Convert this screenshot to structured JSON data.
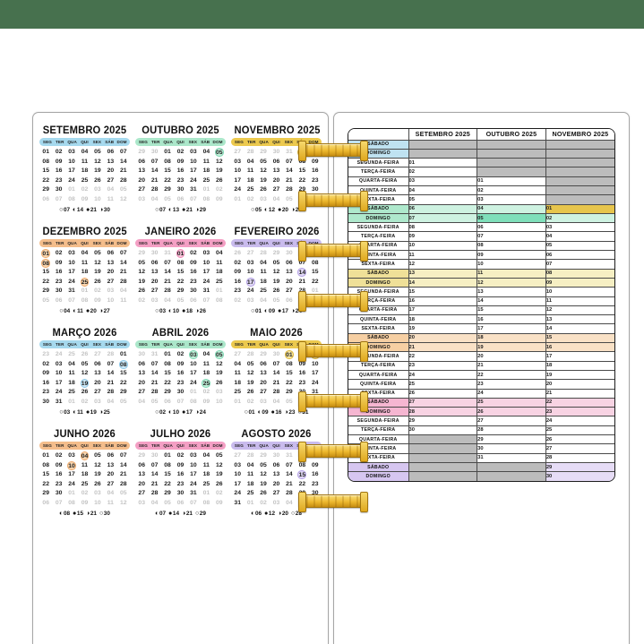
{
  "top_bar": {
    "color": "#47714e"
  },
  "weekday_header": [
    "SEG",
    "TER",
    "QUA",
    "QUI",
    "SEX",
    "SÁB",
    "DOM"
  ],
  "moon_legend": {
    "full": "○",
    "waning": "◐",
    "new": "●",
    "waxing": "◑"
  },
  "colors": {
    "spiral_gold": "#edb92f",
    "page_border": "#a6a6a6",
    "adjacent_day": "#c4c4c4"
  },
  "calendars": [
    {
      "title": "SETEMBRO 2025",
      "pill": "#a6d9ee",
      "circle": "#cfeaf8",
      "ring": "#8ec8e8",
      "weeks": [
        "01 02 03 04 05 06 07",
        "08 09 10 11 12 13 14",
        "15 16 17 18 19 20 21",
        "22 23 24 25 26 27 28",
        "29 30 g01 g02 g03 g04 g05",
        "g06 g07 g08 g09 g10 g11 g12"
      ],
      "moons": [
        [
          "○",
          "07"
        ],
        [
          "◐",
          "14"
        ],
        [
          "●",
          "21"
        ],
        [
          "◑",
          "30"
        ]
      ]
    },
    {
      "title": "OUTUBRO 2025",
      "pill": "#abe7ca",
      "circle": "#c2efd9",
      "ring": "#7fd8b4",
      "weeks": [
        "g29 g30 01 02 03 04 c05",
        "06 07 08 09 10 11 12",
        "13 14 15 16 17 18 19",
        "20 21 22 23 24 25 26",
        "27 28 29 30 31 g01 g02",
        "g03 g04 g05 g06 g07 g08 g09"
      ],
      "moons": [
        [
          "○",
          "07"
        ],
        [
          "◐",
          "13"
        ],
        [
          "●",
          "21"
        ],
        [
          "◑",
          "29"
        ]
      ]
    },
    {
      "title": "NOVEMBRO 2025",
      "pill": "#ecc94e",
      "circle": "#f6e6a6",
      "ring": "#dfb83a",
      "weeks": [
        "g27 g28 g29 g30 g31 c01 02",
        "03 04 05 06 07 08 09",
        "10 11 12 13 14 15 16",
        "17 18 19 20 21 22 23",
        "24 25 26 27 28 29 30",
        "g01 g02 g03 g04 g05 g06 g07"
      ],
      "moons": [
        [
          "○",
          "05"
        ],
        [
          "◐",
          "12"
        ],
        [
          "●",
          "20"
        ],
        [
          "◑",
          "28"
        ]
      ]
    },
    {
      "title": "DEZEMBRO 2025",
      "pill": "#f4bd8b",
      "circle": "#f8d7b2",
      "ring": "#eda86a",
      "weeks": [
        "c01 02 03 04 05 06 07",
        "c08 09 10 11 12 13 14",
        "15 16 17 18 19 20 21",
        "22 23 24 c25 26 27 28",
        "29 30 31 g01 g02 g03 g04",
        "g05 g06 g07 g08 g09 g10 g11"
      ],
      "moons": [
        [
          "○",
          "04"
        ],
        [
          "◐",
          "11"
        ],
        [
          "●",
          "20"
        ],
        [
          "◑",
          "27"
        ]
      ]
    },
    {
      "title": "JANEIRO 2026",
      "pill": "#f49fc4",
      "circle": "#f8c5da",
      "ring": "#ef87b4",
      "weeks": [
        "g29 g30 g31 c01 02 03 04",
        "05 06 07 08 09 10 11",
        "12 13 14 15 16 17 18",
        "19 20 21 22 23 24 25",
        "26 27 28 29 30 31 g01",
        "g02 g03 g04 g05 g06 g07 g08"
      ],
      "moons": [
        [
          "○",
          "03"
        ],
        [
          "◐",
          "10"
        ],
        [
          "●",
          "18"
        ],
        [
          "◑",
          "26"
        ]
      ]
    },
    {
      "title": "FEVEREIRO 2026",
      "pill": "#c9bbed",
      "circle": "#e2daf6",
      "ring": "#b3a0e4",
      "weeks": [
        "g26 g27 g28 g29 g30 g31 01",
        "02 03 04 05 06 07 08",
        "09 10 11 12 13 c14 15",
        "16 c17 18 19 20 21 22",
        "23 24 25 26 27 28 g01",
        "g02 g03 g04 g05 g06 g07 g08"
      ],
      "moons": [
        [
          "○",
          "01"
        ],
        [
          "◐",
          "09"
        ],
        [
          "●",
          "17"
        ],
        [
          "◑",
          "24"
        ]
      ]
    },
    {
      "title": "MARÇO 2026",
      "pill": "#a6d9ee",
      "circle": "#cfeaf8",
      "ring": "#8ec8e8",
      "weeks": [
        "g23 g24 g25 g26 g27 g28 01",
        "02 03 04 05 06 07 c08",
        "09 10 11 12 13 14 15",
        "16 17 18 c19 20 21 22",
        "23 24 25 26 27 28 29",
        "30 31 g01 g02 g03 g04 g05"
      ],
      "moons": [
        [
          "○",
          "03"
        ],
        [
          "◐",
          "11"
        ],
        [
          "●",
          "19"
        ],
        [
          "◑",
          "25"
        ]
      ]
    },
    {
      "title": "ABRIL 2026",
      "pill": "#abe7ca",
      "circle": "#c2efd9",
      "ring": "#7fd8b4",
      "weeks": [
        "g30 g31 01 02 c03 04 c05",
        "06 07 08 09 10 11 12",
        "13 14 15 16 17 18 19",
        "20 21 22 23 24 c25 26",
        "27 28 29 30 g01 g02 g03",
        "g04 g05 g06 g07 g08 g09 g10"
      ],
      "moons": [
        [
          "○",
          "02"
        ],
        [
          "◐",
          "10"
        ],
        [
          "●",
          "17"
        ],
        [
          "◑",
          "24"
        ]
      ]
    },
    {
      "title": "MAIO 2026",
      "pill": "#ecc94e",
      "circle": "#f6e6a6",
      "ring": "#dfb83a",
      "weeks": [
        "g27 g28 g29 g30 c01 02 c03",
        "04 05 06 07 08 09 10",
        "11 12 13 14 15 16 17",
        "18 19 20 21 22 23 24",
        "25 26 27 28 29 30 31",
        "g01 g02 g03 g04 g05 g06 g07"
      ],
      "moons": [
        [
          "○",
          "01"
        ],
        [
          "◐",
          "09"
        ],
        [
          "●",
          "16"
        ],
        [
          "◑",
          "23"
        ],
        [
          "○",
          "31"
        ]
      ]
    },
    {
      "title": "JUNHO 2026",
      "pill": "#f4bd8b",
      "circle": "#f8d7b2",
      "ring": "#eda86a",
      "weeks": [
        "01 02 03 c04 05 06 07",
        "08 09 c10 11 12 13 14",
        "15 16 17 18 19 20 21",
        "22 23 24 25 26 27 28",
        "29 30 g01 g02 g03 g04 g05",
        "g06 g07 g08 g09 g10 g11 g12"
      ],
      "moons": [
        [
          "◐",
          "08"
        ],
        [
          "●",
          "15"
        ],
        [
          "◑",
          "21"
        ],
        [
          "○",
          "30"
        ]
      ]
    },
    {
      "title": "JULHO 2026",
      "pill": "#f49fc4",
      "circle": "#f8c5da",
      "ring": "#ef87b4",
      "weeks": [
        "g29 g30 01 02 03 04 05",
        "06 07 08 09 10 11 12",
        "13 14 15 16 17 18 19",
        "20 21 22 23 24 25 26",
        "27 28 29 30 31 g01 g02",
        "g03 g04 g05 g06 g07 g08 g09"
      ],
      "moons": [
        [
          "◐",
          "07"
        ],
        [
          "●",
          "14"
        ],
        [
          "◑",
          "21"
        ],
        [
          "○",
          "29"
        ]
      ]
    },
    {
      "title": "AGOSTO 2026",
      "pill": "#c9bbed",
      "circle": "#e2daf6",
      "ring": "#b3a0e4",
      "weeks": [
        "g27 g28 g29 g30 g31 01 02",
        "03 04 05 06 07 08 09",
        "10 11 12 13 14 c15 16",
        "17 18 19 20 21 22 23",
        "24 25 26 27 28 29 30",
        "31 g01 g02 g03 g04 g05 g06"
      ],
      "moons": [
        [
          "◐",
          "06"
        ],
        [
          "●",
          "12"
        ],
        [
          "◑",
          "20"
        ],
        [
          "○",
          "28"
        ]
      ]
    }
  ],
  "table": {
    "corner_label": "",
    "headers": [
      "SETEMBRO 2025",
      "OUTUBRO 2025",
      "NOVEMBRO 2025"
    ],
    "palette": {
      "blue": {
        "label": "#bfe2f1",
        "tint": "#d9eef8"
      },
      "green": {
        "label": "#aee8cc",
        "tint": "#cef2e1"
      },
      "yellow": {
        "label": "#efe098",
        "tint": "#f6efc3"
      },
      "orange": {
        "label": "#f6cfa3",
        "tint": "#f9e1c6"
      },
      "pink": {
        "label": "#f5b6d1",
        "tint": "#f8d3e3"
      },
      "purple": {
        "label": "#d6c6f0",
        "tint": "#e6dcf6"
      },
      "empty": "#bcbcbc",
      "gold": "#e7c54c",
      "dkgreen": "#7fdfba"
    },
    "rows": [
      {
        "label": "SÁBADO",
        "band": "blue",
        "cells": [
          "",
          "",
          ""
        ]
      },
      {
        "label": "DOMINGO",
        "band": "blue",
        "cells": [
          "",
          "",
          ""
        ]
      },
      {
        "label": "SEGUNDA-FEIRA",
        "band": null,
        "cells": [
          "01",
          "",
          ""
        ]
      },
      {
        "label": "TERÇA-FEIRA",
        "band": null,
        "cells": [
          "02",
          "",
          ""
        ]
      },
      {
        "label": "QUARTA-FEIRA",
        "band": null,
        "cells": [
          "03",
          "01",
          ""
        ]
      },
      {
        "label": "QUINTA-FEIRA",
        "band": null,
        "cells": [
          "04",
          "02",
          ""
        ]
      },
      {
        "label": "SEXTA-FEIRA",
        "band": null,
        "cells": [
          "05",
          "03",
          ""
        ]
      },
      {
        "label": "SÁBADO",
        "band": "green",
        "cells": [
          "06",
          "04",
          "01"
        ],
        "ov": {
          "2": "gold"
        }
      },
      {
        "label": "DOMINGO",
        "band": "green",
        "cells": [
          "07",
          "05",
          "02"
        ],
        "ov": {
          "1": "dkgreen"
        }
      },
      {
        "label": "SEGUNDA-FEIRA",
        "band": null,
        "cells": [
          "08",
          "06",
          "03"
        ]
      },
      {
        "label": "TERÇA-FEIRA",
        "band": null,
        "cells": [
          "09",
          "07",
          "04"
        ]
      },
      {
        "label": "QUARTA-FEIRA",
        "band": null,
        "cells": [
          "10",
          "08",
          "05"
        ]
      },
      {
        "label": "QUINTA-FEIRA",
        "band": null,
        "cells": [
          "11",
          "09",
          "06"
        ]
      },
      {
        "label": "SEXTA-FEIRA",
        "band": null,
        "cells": [
          "12",
          "10",
          "07"
        ]
      },
      {
        "label": "SÁBADO",
        "band": "yellow",
        "cells": [
          "13",
          "11",
          "08"
        ]
      },
      {
        "label": "DOMINGO",
        "band": "yellow",
        "cells": [
          "14",
          "12",
          "09"
        ]
      },
      {
        "label": "SEGUNDA-FEIRA",
        "band": null,
        "cells": [
          "15",
          "13",
          "10"
        ]
      },
      {
        "label": "TERÇA-FEIRA",
        "band": null,
        "cells": [
          "16",
          "14",
          "11"
        ]
      },
      {
        "label": "QUARTA-FEIRA",
        "band": null,
        "cells": [
          "17",
          "15",
          "12"
        ]
      },
      {
        "label": "QUINTA-FEIRA",
        "band": null,
        "cells": [
          "18",
          "16",
          "13"
        ]
      },
      {
        "label": "SEXTA-FEIRA",
        "band": null,
        "cells": [
          "19",
          "17",
          "14"
        ]
      },
      {
        "label": "SÁBADO",
        "band": "orange",
        "cells": [
          "20",
          "18",
          "15"
        ]
      },
      {
        "label": "DOMINGO",
        "band": "orange",
        "cells": [
          "21",
          "19",
          "16"
        ]
      },
      {
        "label": "SEGUNDA-FEIRA",
        "band": null,
        "cells": [
          "22",
          "20",
          "17"
        ]
      },
      {
        "label": "TERÇA-FEIRA",
        "band": null,
        "cells": [
          "23",
          "21",
          "18"
        ]
      },
      {
        "label": "QUARTA-FEIRA",
        "band": null,
        "cells": [
          "24",
          "22",
          "19"
        ]
      },
      {
        "label": "QUINTA-FEIRA",
        "band": null,
        "cells": [
          "25",
          "23",
          "20"
        ]
      },
      {
        "label": "SEXTA-FEIRA",
        "band": null,
        "cells": [
          "26",
          "24",
          "21"
        ]
      },
      {
        "label": "SÁBADO",
        "band": "pink",
        "cells": [
          "27",
          "25",
          "22"
        ]
      },
      {
        "label": "DOMINGO",
        "band": "pink",
        "cells": [
          "28",
          "26",
          "23"
        ]
      },
      {
        "label": "SEGUNDA-FEIRA",
        "band": null,
        "cells": [
          "29",
          "27",
          "24"
        ]
      },
      {
        "label": "TERÇA-FEIRA",
        "band": null,
        "cells": [
          "30",
          "28",
          "25"
        ]
      },
      {
        "label": "QUARTA-FEIRA",
        "band": null,
        "cells": [
          "",
          "29",
          "26"
        ]
      },
      {
        "label": "QUINTA-FEIRA",
        "band": null,
        "cells": [
          "",
          "30",
          "27"
        ]
      },
      {
        "label": "SEXTA-FEIRA",
        "band": null,
        "cells": [
          "",
          "31",
          "28"
        ]
      },
      {
        "label": "SÁBADO",
        "band": "purple",
        "cells": [
          "",
          "",
          "29"
        ]
      },
      {
        "label": "DOMINGO",
        "band": "purple",
        "cells": [
          "",
          "",
          "30"
        ]
      }
    ]
  }
}
